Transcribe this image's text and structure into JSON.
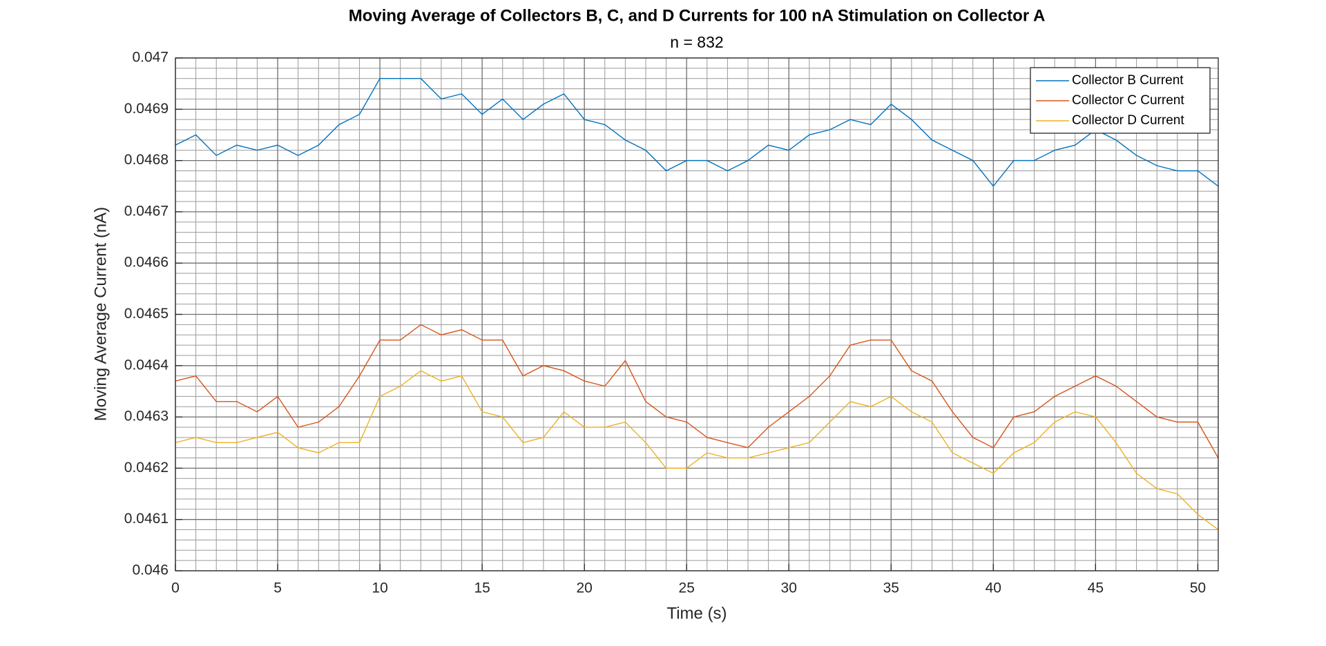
{
  "chart_data": {
    "type": "line",
    "title": "Moving Average of Collectors B, C, and D Currents for 100 nA Stimulation on Collector A",
    "subtitle": "n = 832",
    "xlabel": "Time (s)",
    "ylabel": "Moving Average Current (nA)",
    "x": [
      0,
      1,
      2,
      3,
      4,
      5,
      6,
      7,
      8,
      9,
      10,
      11,
      12,
      13,
      14,
      15,
      16,
      17,
      18,
      19,
      20,
      21,
      22,
      23,
      24,
      25,
      26,
      27,
      28,
      29,
      30,
      31,
      32,
      33,
      34,
      35,
      36,
      37,
      38,
      39,
      40,
      41,
      42,
      43,
      44,
      45,
      46,
      47,
      48,
      49,
      50,
      51
    ],
    "series": [
      {
        "name": "Collector B Current",
        "color": "#0072BD",
        "values": [
          0.04683,
          0.04685,
          0.04681,
          0.04683,
          0.04682,
          0.04683,
          0.04681,
          0.04683,
          0.04687,
          0.04689,
          0.04696,
          0.04696,
          0.04696,
          0.04692,
          0.04693,
          0.04689,
          0.04692,
          0.04688,
          0.04691,
          0.04693,
          0.04688,
          0.04687,
          0.04684,
          0.04682,
          0.04678,
          0.0468,
          0.0468,
          0.04678,
          0.0468,
          0.04683,
          0.04682,
          0.04685,
          0.04686,
          0.04688,
          0.04687,
          0.04691,
          0.04688,
          0.04684,
          0.04682,
          0.0468,
          0.04675,
          0.0468,
          0.0468,
          0.04682,
          0.04683,
          0.04686,
          0.04684,
          0.04681,
          0.04679,
          0.04678,
          0.04678,
          0.04675
        ]
      },
      {
        "name": "Collector C Current",
        "color": "#D95319",
        "values": [
          0.04637,
          0.04638,
          0.04633,
          0.04633,
          0.04631,
          0.04634,
          0.04628,
          0.04629,
          0.04632,
          0.04638,
          0.04645,
          0.04645,
          0.04648,
          0.04646,
          0.04647,
          0.04645,
          0.04645,
          0.04638,
          0.0464,
          0.04639,
          0.04637,
          0.04636,
          0.04641,
          0.04633,
          0.0463,
          0.04629,
          0.04626,
          0.04625,
          0.04624,
          0.04628,
          0.04631,
          0.04634,
          0.04638,
          0.04644,
          0.04645,
          0.04645,
          0.04639,
          0.04637,
          0.04631,
          0.04626,
          0.04624,
          0.0463,
          0.04631,
          0.04634,
          0.04636,
          0.04638,
          0.04636,
          0.04633,
          0.0463,
          0.04629,
          0.04629,
          0.04622
        ]
      },
      {
        "name": "Collector D Current",
        "color": "#EDB120",
        "values": [
          0.04625,
          0.04626,
          0.04625,
          0.04625,
          0.04626,
          0.04627,
          0.04624,
          0.04623,
          0.04625,
          0.04625,
          0.04634,
          0.04636,
          0.04639,
          0.04637,
          0.04638,
          0.04631,
          0.0463,
          0.04625,
          0.04626,
          0.04631,
          0.04628,
          0.04628,
          0.04629,
          0.04625,
          0.0462,
          0.0462,
          0.04623,
          0.04622,
          0.04622,
          0.04623,
          0.04624,
          0.04625,
          0.04629,
          0.04633,
          0.04632,
          0.04634,
          0.04631,
          0.04629,
          0.04623,
          0.04621,
          0.04619,
          0.04623,
          0.04625,
          0.04629,
          0.04631,
          0.0463,
          0.04625,
          0.04619,
          0.04616,
          0.04615,
          0.04611,
          0.04608
        ]
      }
    ],
    "xlim": [
      0,
      51
    ],
    "xticks": [
      0,
      5,
      10,
      15,
      20,
      25,
      30,
      35,
      40,
      45,
      50
    ],
    "ylim": [
      0.046,
      0.047
    ],
    "yticks": [
      0.046,
      0.0461,
      0.0462,
      0.0463,
      0.0464,
      0.0465,
      0.0466,
      0.0467,
      0.0468,
      0.0469,
      0.047
    ],
    "xminorticks": [
      1,
      2,
      3,
      4,
      6,
      7,
      8,
      9,
      11,
      12,
      13,
      14,
      16,
      17,
      18,
      19,
      21,
      22,
      23,
      24,
      26,
      27,
      28,
      29,
      31,
      32,
      33,
      34,
      36,
      37,
      38,
      39,
      41,
      42,
      43,
      44,
      46,
      47,
      48,
      49,
      51
    ],
    "yminorticks": [
      0.04602,
      0.04604,
      0.04606,
      0.04608,
      0.04612,
      0.04614,
      0.04616,
      0.04618,
      0.04622,
      0.04624,
      0.04626,
      0.04628,
      0.04632,
      0.04634,
      0.04636,
      0.04638,
      0.04642,
      0.04644,
      0.04646,
      0.04648,
      0.04652,
      0.04654,
      0.04656,
      0.04658,
      0.04662,
      0.04664,
      0.04666,
      0.04668,
      0.04672,
      0.04674,
      0.04676,
      0.04678,
      0.04682,
      0.04684,
      0.04686,
      0.04688,
      0.04692,
      0.04694,
      0.04696,
      0.04698
    ],
    "grid": true,
    "minor_grid": true,
    "legend": "top-right"
  }
}
